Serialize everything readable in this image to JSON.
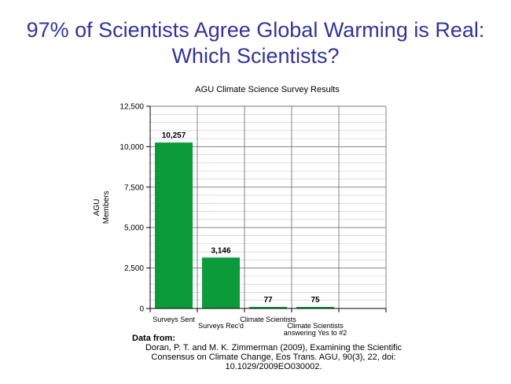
{
  "slide": {
    "title_line1": "97% of Scientists Agree Global Warming is Real:",
    "title_line2": "Which Scientists?"
  },
  "chart_data": {
    "type": "bar",
    "title": "AGU Climate Science Survey Results",
    "ylabel_lines": [
      "AGU",
      "Members"
    ],
    "xlabel": "",
    "categories": [
      "Surveys Sent",
      "Surveys Rec'd",
      "Climate Scientists",
      "Climate Scientists answering Yes to #2",
      ""
    ],
    "category_label_lines": [
      [
        "Surveys Sent"
      ],
      [
        "Surveys Rec'd"
      ],
      [
        "Climate Scientists"
      ],
      [
        "Climate Scientists",
        "answering Yes to #2"
      ],
      []
    ],
    "values": [
      10257,
      3146,
      77,
      75,
      null
    ],
    "data_labels": [
      "10,257",
      "3,146",
      "77",
      "75",
      ""
    ],
    "ylim": [
      0,
      12500
    ],
    "yticks": [
      0,
      2500,
      5000,
      7500,
      10000,
      12500
    ],
    "ytick_labels": [
      "0",
      "2,500",
      "5,000",
      "7,500",
      "10,000",
      "12,500"
    ],
    "grid": true,
    "legend": "none",
    "bar_color": "#0c9b3a"
  },
  "source": {
    "header": "Data from:",
    "lines": [
      "Doran, P. T. and M. K. Zimmerman (2009), Examining the Scientific",
      "Consensus on Climate Change, Eos Trans. AGU, 90(3), 22, doi:",
      "10.1029/2009EO030002."
    ]
  }
}
